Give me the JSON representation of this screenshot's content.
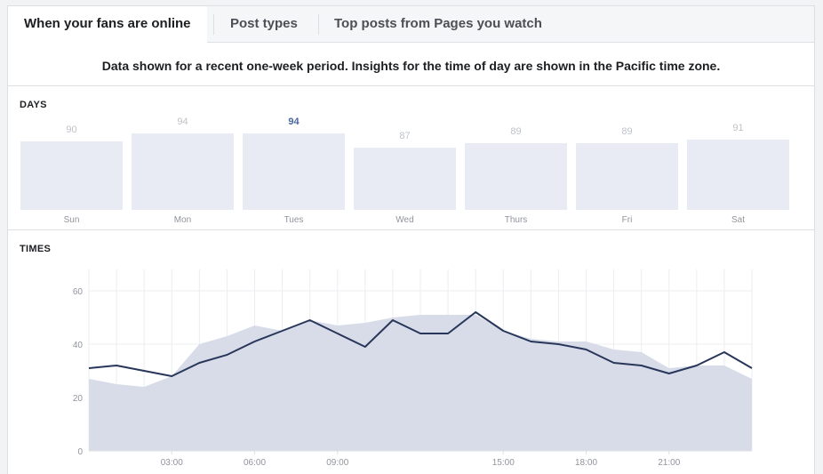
{
  "tabs": [
    {
      "label": "When your fans are online",
      "active": true
    },
    {
      "label": "Post types",
      "active": false
    },
    {
      "label": "Top posts from Pages you watch",
      "active": false
    }
  ],
  "notice": "Data shown for a recent one-week period. Insights for the time of day are shown in the Pacific time zone.",
  "days_section": {
    "label": "DAYS",
    "days": [
      {
        "name": "Sun",
        "value": "90"
      },
      {
        "name": "Mon",
        "value": "94"
      },
      {
        "name": "Tues",
        "value": "94",
        "highlighted": true
      },
      {
        "name": "Wed",
        "value": "87"
      },
      {
        "name": "Thurs",
        "value": "89"
      },
      {
        "name": "Fri",
        "value": "89"
      },
      {
        "name": "Sat",
        "value": "91"
      }
    ]
  },
  "times_section": {
    "label": "TIMES"
  },
  "colors": {
    "line": "#283659",
    "area": "#d7dce8",
    "bar": "#e9ebf4",
    "highlight_text": "#4b67a1"
  },
  "chart_data": {
    "type": "line",
    "x": [
      0,
      1,
      2,
      3,
      4,
      5,
      6,
      7,
      8,
      9,
      10,
      11,
      12,
      13,
      14,
      15,
      16,
      17,
      18,
      19,
      20,
      21,
      22,
      23,
      24
    ],
    "xticks": [
      {
        "hour": 3,
        "label": "03:00"
      },
      {
        "hour": 6,
        "label": "06:00"
      },
      {
        "hour": 9,
        "label": "09:00"
      },
      {
        "hour": 15,
        "label": "15:00"
      },
      {
        "hour": 18,
        "label": "18:00"
      },
      {
        "hour": 21,
        "label": "21:00"
      }
    ],
    "yticks": [
      0,
      20,
      40,
      60
    ],
    "ylim": [
      0,
      70
    ],
    "xlim": [
      0,
      24
    ],
    "grid": true,
    "series": [
      {
        "kind": "line",
        "values": [
          31,
          32,
          30,
          28,
          33,
          36,
          41,
          45,
          49,
          44,
          39,
          49,
          44,
          44,
          52,
          45,
          41,
          40,
          38,
          33,
          32,
          29,
          32,
          37,
          31
        ]
      },
      {
        "kind": "area",
        "values": [
          27,
          25,
          24,
          28,
          40,
          43,
          47,
          45,
          49,
          47,
          48,
          50,
          51,
          51,
          51,
          45,
          42,
          41,
          41,
          38,
          37,
          31,
          32,
          32,
          27
        ]
      }
    ]
  }
}
